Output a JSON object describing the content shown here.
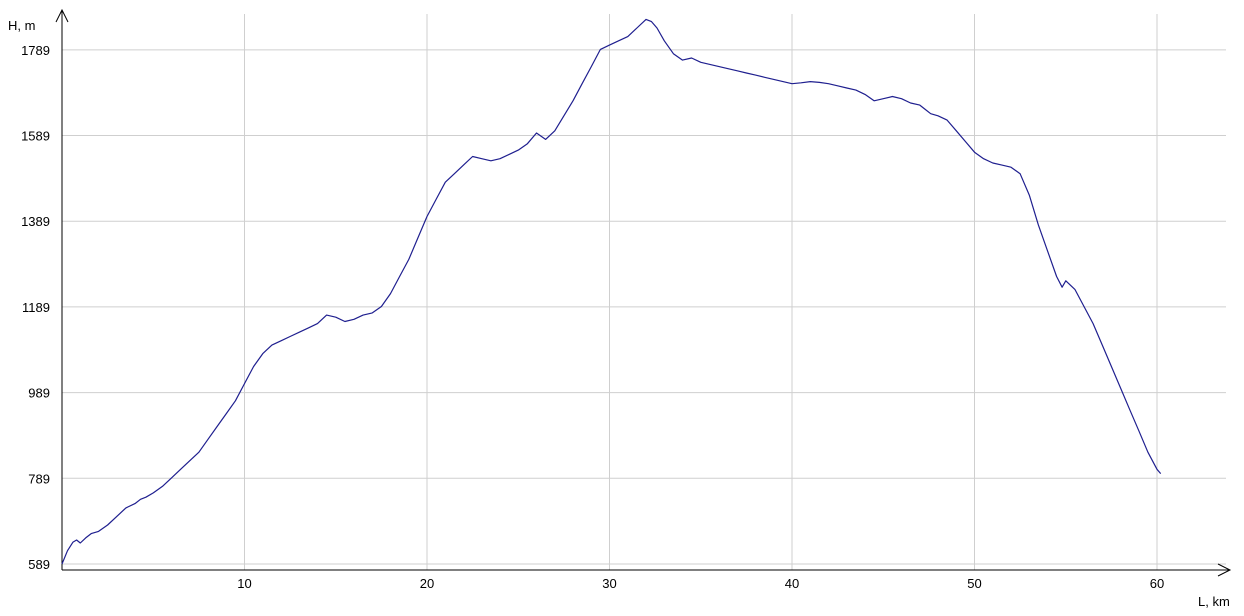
{
  "chart_data": {
    "type": "line",
    "title": "",
    "xlabel": "L, km",
    "ylabel": "H, m",
    "xlim": [
      0,
      64
    ],
    "ylim": [
      575,
      1882
    ],
    "x_ticks": [
      10,
      20,
      30,
      40,
      50,
      60
    ],
    "y_ticks": [
      589,
      789,
      989,
      1189,
      1389,
      1589,
      1789
    ],
    "x_tick_labels": [
      "10",
      "20",
      "30",
      "40",
      "50",
      "60"
    ],
    "y_tick_labels": [
      "589",
      "789",
      "989",
      "1189",
      "1389",
      "1589",
      "1789"
    ],
    "grid": true,
    "colors": {
      "line": "#1f1f8f",
      "grid": "#cfcfcf",
      "axis": "#000000"
    },
    "series": [
      {
        "x": [
          0,
          0.3,
          0.6,
          0.8,
          1.0,
          1.3,
          1.6,
          2.0,
          2.5,
          3.0,
          3.5,
          4.0,
          4.3,
          4.6,
          5.0,
          5.5,
          6.0,
          6.5,
          7.0,
          7.5,
          8.0,
          8.5,
          9.0,
          9.5,
          10.0,
          10.5,
          11.0,
          11.5,
          12.0,
          12.5,
          13.0,
          13.5,
          14.0,
          14.5,
          15.0,
          15.5,
          16.0,
          16.5,
          17.0,
          17.5,
          18.0,
          18.5,
          19.0,
          19.5,
          20.0,
          20.5,
          21.0,
          21.5,
          22.0,
          22.5,
          23.0,
          23.5,
          24.0,
          24.5,
          25.0,
          25.5,
          26.0,
          26.5,
          27.0,
          27.5,
          28.0,
          28.5,
          29.0,
          29.5,
          30.0,
          30.5,
          31.0,
          31.5,
          32.0,
          32.3,
          32.6,
          33.0,
          33.5,
          34.0,
          34.5,
          35.0,
          35.5,
          36.0,
          36.5,
          37.0,
          37.5,
          38.0,
          38.5,
          39.0,
          39.5,
          40.0,
          40.5,
          41.0,
          41.5,
          42.0,
          42.5,
          43.0,
          43.5,
          44.0,
          44.5,
          45.0,
          45.5,
          46.0,
          46.5,
          47.0,
          47.3,
          47.6,
          48.0,
          48.5,
          49.0,
          49.5,
          50.0,
          50.5,
          51.0,
          51.5,
          52.0,
          52.5,
          53.0,
          53.5,
          54.0,
          54.5,
          54.8,
          55.0,
          55.5,
          56.0,
          56.5,
          57.0,
          57.5,
          58.0,
          58.5,
          59.0,
          59.5,
          60.0,
          60.2
        ],
        "y": [
          589,
          620,
          640,
          645,
          638,
          650,
          660,
          665,
          680,
          700,
          720,
          730,
          740,
          745,
          755,
          770,
          790,
          810,
          830,
          850,
          880,
          910,
          940,
          970,
          1010,
          1050,
          1080,
          1100,
          1110,
          1120,
          1130,
          1140,
          1150,
          1170,
          1165,
          1155,
          1160,
          1170,
          1175,
          1190,
          1220,
          1260,
          1300,
          1350,
          1400,
          1440,
          1480,
          1500,
          1520,
          1540,
          1535,
          1530,
          1535,
          1545,
          1555,
          1570,
          1595,
          1580,
          1600,
          1635,
          1670,
          1710,
          1750,
          1790,
          1800,
          1810,
          1820,
          1840,
          1860,
          1855,
          1840,
          1810,
          1780,
          1765,
          1770,
          1760,
          1755,
          1750,
          1745,
          1740,
          1735,
          1730,
          1725,
          1720,
          1715,
          1710,
          1712,
          1715,
          1713,
          1710,
          1705,
          1700,
          1695,
          1685,
          1670,
          1675,
          1680,
          1675,
          1665,
          1660,
          1650,
          1640,
          1635,
          1625,
          1600,
          1575,
          1550,
          1535,
          1525,
          1520,
          1515,
          1500,
          1450,
          1380,
          1320,
          1260,
          1235,
          1250,
          1230,
          1190,
          1150,
          1100,
          1050,
          1000,
          950,
          900,
          850,
          810,
          800
        ]
      }
    ]
  }
}
